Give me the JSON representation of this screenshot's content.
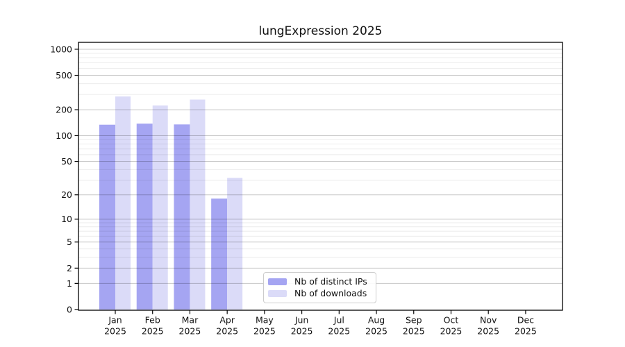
{
  "title": "lungExpression 2025",
  "legend": {
    "position": "inside-bottom-center",
    "items": [
      {
        "label": "Nb of distinct IPs",
        "color": "#a5a5f2"
      },
      {
        "label": "Nb of downloads",
        "color": "#dbdbf8"
      }
    ]
  },
  "chart_data": {
    "type": "bar",
    "title": "lungExpression 2025",
    "xlabel": "",
    "ylabel": "",
    "year": "2025",
    "categories": [
      "Jan",
      "Feb",
      "Mar",
      "Apr",
      "May",
      "Jun",
      "Jul",
      "Aug",
      "Sep",
      "Oct",
      "Nov",
      "Dec"
    ],
    "series": [
      {
        "key": "distinct-ips",
        "name": "Nb of distinct IPs",
        "color": "#a5a5f2",
        "values": [
          134,
          138,
          135,
          18,
          0,
          0,
          0,
          0,
          0,
          0,
          0,
          0
        ]
      },
      {
        "key": "downloads",
        "name": "Nb of downloads",
        "color": "#dbdbf8",
        "values": [
          285,
          224,
          262,
          32,
          0,
          0,
          0,
          0,
          0,
          0,
          0,
          0
        ]
      }
    ],
    "y_scale": "log10(1+v)",
    "y_ticks": [
      0,
      1,
      2,
      5,
      10,
      20,
      50,
      100,
      200,
      500,
      1000
    ],
    "y_minor_ticks": [
      3,
      4,
      6,
      7,
      8,
      9,
      30,
      40,
      60,
      70,
      80,
      90,
      300,
      400,
      600,
      700,
      800,
      900
    ],
    "ylim": [
      0,
      1150
    ],
    "grid": true,
    "colors": {
      "grid_major": "rgba(0,0,0,0.22)",
      "grid_minor": "rgba(0,0,0,0.08)",
      "axis": "#000000",
      "text": "#111111"
    }
  }
}
